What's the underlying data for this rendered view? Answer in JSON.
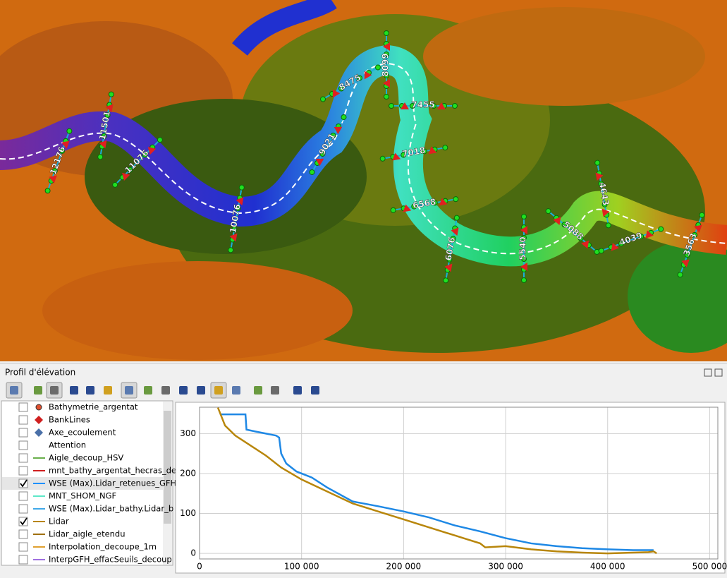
{
  "map": {
    "section_labels": [
      "12176",
      "11501",
      "11076",
      "10076",
      "9021",
      "8475",
      "8099",
      "7455",
      "7018",
      "6568",
      "6076",
      "5540",
      "5088",
      "4643",
      "4039",
      "3563"
    ]
  },
  "panel": {
    "title": "Profil d'élévation"
  },
  "layers": [
    {
      "name": "Bathymetrie_argentat",
      "checked": false,
      "icon": "dot",
      "color": "#e05030"
    },
    {
      "name": "BankLines",
      "checked": false,
      "icon": "diamond",
      "color": "#d02020"
    },
    {
      "name": "Axe_ecoulement",
      "checked": false,
      "icon": "diamond",
      "color": "#4a70a8"
    },
    {
      "name": "Attention",
      "checked": false,
      "icon": "none",
      "color": "#ffffff"
    },
    {
      "name": "Aigle_decoup_HSV",
      "checked": false,
      "icon": "line",
      "color": "#6ab04c"
    },
    {
      "name": "mnt_bathy_argentat_hecras_de",
      "checked": false,
      "icon": "line",
      "color": "#d02020"
    },
    {
      "name": "WSE (Max).Lidar_retenues_GFH",
      "checked": true,
      "icon": "line",
      "color": "#1e90ff"
    },
    {
      "name": "MNT_SHOM_NGF",
      "checked": false,
      "icon": "line",
      "color": "#5ee8c8"
    },
    {
      "name": "WSE (Max).Lidar_bathy.Lidar_b",
      "checked": false,
      "icon": "line",
      "color": "#40a8e8"
    },
    {
      "name": "Lidar",
      "checked": true,
      "icon": "line",
      "color": "#b8860b"
    },
    {
      "name": "Lidar_aigle_etendu",
      "checked": false,
      "icon": "line",
      "color": "#a07010"
    },
    {
      "name": "Interpolation_decoupe_1m",
      "checked": false,
      "icon": "line",
      "color": "#e0a030"
    },
    {
      "name": "InterpGFH_effacSeuils_decoup",
      "checked": false,
      "icon": "line",
      "color": "#a070e0"
    }
  ],
  "chart_data": {
    "type": "line",
    "xlim": [
      0,
      508000
    ],
    "ylim": [
      -14,
      366
    ],
    "xticks": [
      0,
      {
        "value": 100000,
        "label": "100 000"
      },
      {
        "value": 200000,
        "label": "200 000"
      },
      {
        "value": 300000,
        "label": "300 000"
      },
      {
        "value": 400000,
        "label": "400 000"
      },
      {
        "value": 500000,
        "label": "500 000"
      }
    ],
    "yticks": [
      0,
      100,
      200,
      300
    ],
    "grid": true,
    "series": [
      {
        "name": "WSE (Max).Lidar_retenues_GFH",
        "color": "#1e88e5",
        "x": [
          20000,
          45000,
          46000,
          55000,
          75000,
          78000,
          80000,
          85000,
          95000,
          110000,
          125000,
          150000,
          175000,
          200000,
          225000,
          250000,
          275000,
          300000,
          325000,
          350000,
          375000,
          400000,
          425000,
          445000
        ],
        "values": [
          348,
          348,
          310,
          305,
          295,
          290,
          250,
          225,
          205,
          190,
          165,
          130,
          118,
          105,
          90,
          70,
          55,
          38,
          25,
          18,
          13,
          10,
          8,
          8
        ]
      },
      {
        "name": "Lidar",
        "color": "#b8860b",
        "x": [
          18000,
          25000,
          35000,
          50000,
          65000,
          80000,
          100000,
          125000,
          150000,
          175000,
          200000,
          225000,
          250000,
          275000,
          280000,
          300000,
          325000,
          350000,
          375000,
          400000,
          425000,
          440000,
          445000,
          448000
        ],
        "values": [
          365,
          320,
          295,
          270,
          245,
          215,
          185,
          155,
          125,
          105,
          85,
          65,
          45,
          25,
          15,
          18,
          10,
          5,
          2,
          0,
          2,
          3,
          5,
          0
        ]
      }
    ]
  }
}
